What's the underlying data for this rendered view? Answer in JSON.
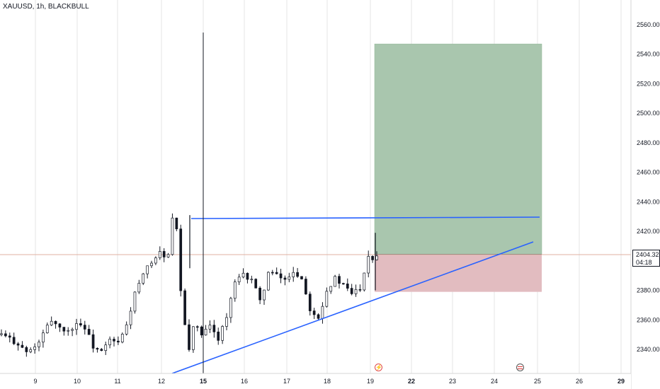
{
  "header": {
    "symbol": "XAUUSD, 1h, BLACKBULL"
  },
  "price_scale": {
    "current_price": "2404.32",
    "countdown": "04:18"
  },
  "events": [
    {
      "name": "event-lightning",
      "glyph": "⚡"
    },
    {
      "name": "event-us-flag"
    }
  ],
  "colors": {
    "up_candle": "#131722",
    "down_candle": "#131722",
    "trendline": "#2962ff",
    "profit_zone": "#a5c8a5",
    "loss_zone": "#e8b4b8",
    "current_price_line": "#e0b0a0",
    "grid": "#e6e6e6"
  },
  "chart_data": {
    "type": "candlestick",
    "title": "XAUUSD, 1h, BLACKBULL",
    "ylim": [
      2328,
      2568
    ],
    "y_ticks": [
      "2340.00",
      "2360.00",
      "2380.00",
      "2400.00",
      "2420.00",
      "2440.00",
      "2460.00",
      "2480.00",
      "2500.00",
      "2520.00",
      "2540.00",
      "2560.00"
    ],
    "x_ticks": [
      "9",
      "10",
      "11",
      "12",
      "15",
      "16",
      "17",
      "18",
      "19",
      "22",
      "23",
      "24",
      "25",
      "26",
      "29"
    ],
    "close_path": [
      [
        0,
        2350
      ],
      [
        4,
        2344
      ],
      [
        6,
        2338
      ],
      [
        8,
        2341
      ],
      [
        10,
        2350
      ],
      [
        12,
        2360
      ],
      [
        14,
        2355
      ],
      [
        16,
        2352
      ],
      [
        18,
        2358
      ],
      [
        20,
        2355
      ],
      [
        22,
        2342
      ],
      [
        24,
        2338
      ],
      [
        26,
        2346
      ],
      [
        28,
        2344
      ],
      [
        30,
        2356
      ],
      [
        32,
        2378
      ],
      [
        34,
        2390
      ],
      [
        36,
        2400
      ],
      [
        38,
        2405
      ],
      [
        40,
        2403
      ],
      [
        41,
        2428
      ],
      [
        42,
        2420
      ],
      [
        43,
        2380
      ],
      [
        44,
        2355
      ],
      [
        45,
        2340
      ],
      [
        46,
        2357
      ],
      [
        48,
        2350
      ],
      [
        50,
        2355
      ],
      [
        52,
        2348
      ],
      [
        54,
        2362
      ],
      [
        56,
        2385
      ],
      [
        58,
        2390
      ],
      [
        60,
        2388
      ],
      [
        62,
        2372
      ],
      [
        64,
        2392
      ],
      [
        66,
        2390
      ],
      [
        68,
        2387
      ],
      [
        70,
        2393
      ],
      [
        72,
        2388
      ],
      [
        74,
        2368
      ],
      [
        76,
        2362
      ],
      [
        78,
        2380
      ],
      [
        80,
        2388
      ],
      [
        82,
        2383
      ],
      [
        84,
        2378
      ],
      [
        86,
        2382
      ],
      [
        88,
        2404
      ],
      [
        89,
        2402
      ],
      [
        90,
        2404
      ]
    ],
    "trendlines": [
      {
        "name": "resistance",
        "from": [
          "14.75",
          2431
        ],
        "to": [
          "25",
          2431
        ]
      },
      {
        "name": "ascending-support",
        "from": [
          "12.3",
          2328
        ],
        "to": [
          "24.9",
          2413
        ]
      }
    ],
    "long_position": {
      "entry": 2404.32,
      "target": 2547,
      "stop": 2379,
      "from": "19.1",
      "to": "25.1"
    },
    "current_price": 2404.32
  }
}
